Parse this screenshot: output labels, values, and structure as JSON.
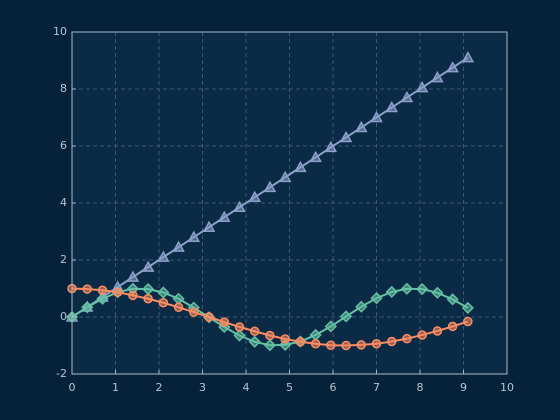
{
  "chart_data": {
    "type": "line",
    "x": [
      0,
      0.35,
      0.7,
      1.05,
      1.4,
      1.75,
      2.1,
      2.45,
      2.8,
      3.15,
      3.5,
      3.85,
      4.2,
      4.55,
      4.9,
      5.25,
      5.6,
      5.95,
      6.3,
      6.65,
      7.0,
      7.35,
      7.7,
      8.05,
      8.4,
      8.75,
      9.1
    ],
    "series": [
      {
        "color": "#8da0cb",
        "marker": "triangle",
        "values": [
          0,
          0.35,
          0.7,
          1.05,
          1.4,
          1.75,
          2.1,
          2.45,
          2.8,
          3.15,
          3.5,
          3.85,
          4.2,
          4.55,
          4.9,
          5.25,
          5.6,
          5.95,
          6.3,
          6.65,
          7.0,
          7.35,
          7.7,
          8.05,
          8.4,
          8.75,
          9.1
        ]
      },
      {
        "color": "#66c2a5",
        "marker": "diamond",
        "values": [
          0,
          0.34,
          0.64,
          0.87,
          0.99,
          0.98,
          0.86,
          0.64,
          0.33,
          -0.01,
          -0.35,
          -0.65,
          -0.87,
          -0.99,
          -0.98,
          -0.86,
          -0.63,
          -0.33,
          0.02,
          0.36,
          0.66,
          0.88,
          0.99,
          0.98,
          0.85,
          0.62,
          0.32
        ]
      },
      {
        "color": "#fc8d62",
        "marker": "circle",
        "values": [
          1,
          0.98,
          0.94,
          0.87,
          0.76,
          0.64,
          0.5,
          0.34,
          0.17,
          0.0,
          -0.18,
          -0.35,
          -0.5,
          -0.65,
          -0.77,
          -0.87,
          -0.94,
          -0.99,
          -1.0,
          -0.98,
          -0.94,
          -0.86,
          -0.76,
          -0.63,
          -0.49,
          -0.33,
          -0.16
        ]
      }
    ],
    "xlim": [
      0,
      10
    ],
    "xticks": [
      0,
      1,
      2,
      3,
      4,
      5,
      6,
      7,
      8,
      9,
      10
    ],
    "ylim": [
      -2,
      10
    ],
    "yticks": [
      -2,
      0,
      2,
      4,
      6,
      8,
      10
    ],
    "grid": true
  }
}
